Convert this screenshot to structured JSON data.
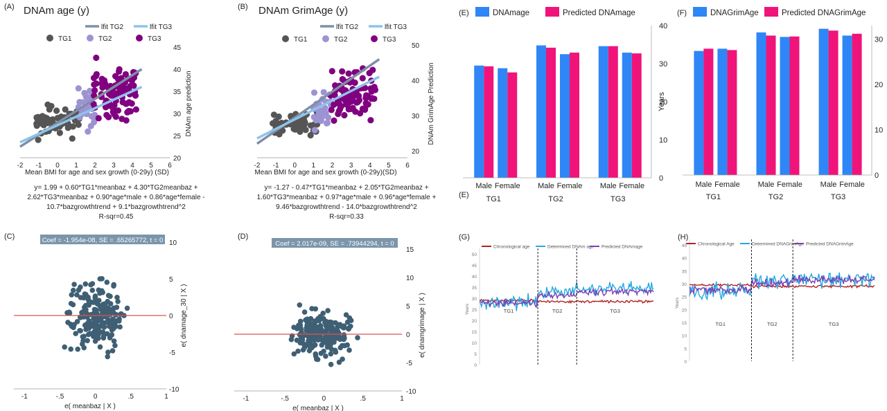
{
  "panels": {
    "A": {
      "letter": "(A)",
      "title": "DNAm age (y)",
      "legend_groups": [
        "TG1",
        "TG2",
        "TG3"
      ],
      "legend_fits": [
        "lfit TG2",
        "lfit TG3"
      ],
      "xlabel": "Mean BMI for age and sex  growth (0-29y) (SD)",
      "ylabel": "DNAm age prediction",
      "x_ticks": [
        "-2",
        "-1",
        "0",
        "1",
        "2",
        "3",
        "4",
        "5",
        "6"
      ],
      "y_ticks": [
        "20",
        "25",
        "30",
        "35",
        "40",
        "45"
      ],
      "equation": [
        "y= 1.99 + 0.60*TG1*meanbaz + 4.30*TG2meanbaz +",
        "2.62*TG3*meanbaz +  0.90*age*male + 0.86*age*female -",
        "10.7*bazgrowthtrend + 9.1*bazgrowthtrend^2",
        "R-sqr=0.45"
      ]
    },
    "B": {
      "letter": "(B)",
      "title": "DNAm GrimAge (y)",
      "legend_groups": [
        "TG1",
        "TG2",
        "TG3"
      ],
      "legend_fits": [
        "lfit TG2",
        "lfit TG3"
      ],
      "xlabel": "Mean BMI for age and sex growth (0-29y)(SD)",
      "ylabel": "DNAm GrimAge Prediction",
      "x_ticks": [
        "-2",
        "-1",
        "0",
        "1",
        "2",
        "3",
        "4",
        "5",
        "6"
      ],
      "y_ticks": [
        "20",
        "30",
        "40",
        "50"
      ],
      "equation": [
        "y= -1.27 - 0.47*TG1*meanbaz + 2.05*TG2meanbaz +",
        "1.60*TG3*meanbaz + 0.97*age*male + 0.96*age*female +",
        "9.46*bazgrowthtrend - 14.0*bazgrowthtrend^2",
        "R-sqr=0.33"
      ]
    },
    "C": {
      "letter": "(C)",
      "coef_label": "Coef = -1.954e-08, SE = .65265772, t = 0",
      "xlabel": "e( meanbaz | X )",
      "ylabel": "e( dnamage_30 | X )",
      "x_ticks": [
        "-1",
        "-.5",
        "0",
        ".5",
        "1"
      ],
      "y_ticks": [
        "10",
        "5",
        "0",
        "-5",
        "-10"
      ]
    },
    "D": {
      "letter": "(D)",
      "coef_label": "Coef = 2.017e-09, SE = .73944294, t = 0",
      "xlabel": "e( meanbaz | X )",
      "ylabel": "e( dnamgrimage | X )",
      "x_ticks": [
        "-1",
        "-.5",
        "0",
        ".5",
        "1"
      ],
      "y_ticks": [
        "15",
        "10",
        "5",
        "0",
        "-5",
        "-10"
      ]
    },
    "E": {
      "letter": "(E)",
      "sub_letter": "(E)",
      "legend": [
        "DNAmage",
        "Predicted DNAmage"
      ],
      "ylabel": "Years",
      "y_ticks": [
        "0",
        "10",
        "20",
        "30",
        "40"
      ],
      "categories": [
        "Male",
        "Female",
        "Male",
        "Female",
        "Male",
        "Female"
      ],
      "groups": [
        "TG1",
        "TG2",
        "TG3"
      ]
    },
    "F": {
      "letter": "(F)",
      "legend": [
        "DNAGrimAge",
        "Predicted DNAGrimAge"
      ],
      "y_ticks": [
        "0",
        "10",
        "20",
        "30"
      ],
      "categories": [
        "Male",
        "Female",
        "Male",
        "Female",
        "Male",
        "Female"
      ],
      "groups": [
        "TG1",
        "TG2",
        "TG3"
      ]
    },
    "G": {
      "letter": "(G)",
      "legend": [
        "Chronological age",
        "Determined DNAm age",
        "Predicted DNAmage"
      ],
      "ylabel": "Years",
      "y_ticks": [
        "0",
        "5",
        "10",
        "15",
        "20",
        "25",
        "30",
        "35",
        "40",
        "45",
        "50"
      ],
      "groups": [
        "TG1",
        "TG2",
        "TG3"
      ]
    },
    "H": {
      "letter": "(H)",
      "legend": [
        "Chronological Age",
        "Determined DNAGrimAge",
        "Predicted DNAGrimAge"
      ],
      "ylabel": "Years",
      "y_ticks": [
        "0",
        "5",
        "10",
        "15",
        "20",
        "25",
        "30",
        "35",
        "40",
        "45"
      ],
      "groups": [
        "TG1",
        "TG2",
        "TG3"
      ]
    }
  },
  "colors": {
    "tg1": "#555555",
    "tg2": "#9d93d3",
    "tg3": "#800080",
    "fit_tg2": "#7f8fa6",
    "fit_tg3": "#8ec3ea",
    "resid_dot": "#3f5f74",
    "zero_line": "#d9534f",
    "coef_box": "#7b95ab",
    "bar_actual": "#2f86f6",
    "bar_pred": "#f0147a",
    "chron": "#b22222",
    "determined": "#25a7df",
    "predicted": "#7a3fb5"
  },
  "chart_data": [
    {
      "type": "scatter",
      "panel": "A",
      "title": "DNAm age (y)",
      "xlabel": "Mean BMI for age and sex  growth (0-29y) (SD)",
      "ylabel": "DNAm age prediction",
      "xlim": [
        -2,
        6
      ],
      "ylim": [
        20,
        45
      ],
      "series": [
        {
          "name": "TG1",
          "n": 55,
          "x_range": [
            -1.2,
            1.2
          ],
          "y_range": [
            23,
            34
          ]
        },
        {
          "name": "TG2",
          "n": 30,
          "x_range": [
            1.1,
            2.0
          ],
          "y_range": [
            24,
            38
          ]
        },
        {
          "name": "TG3",
          "n": 90,
          "x_range": [
            1.9,
            4.2
          ],
          "y_range": [
            24,
            44
          ]
        }
      ],
      "fits": [
        {
          "name": "lfit TG2",
          "x": [
            -2,
            4.5
          ],
          "y": [
            22.5,
            40
          ]
        },
        {
          "name": "lfit TG3",
          "x": [
            -2,
            4.5
          ],
          "y": [
            23.5,
            36
          ]
        }
      ]
    },
    {
      "type": "scatter",
      "panel": "B",
      "title": "DNAm GrimAge (y)",
      "xlabel": "Mean BMI for age and sex growth (0-29y)(SD)",
      "ylabel": "DNAm GrimAge Prediction",
      "xlim": [
        -2,
        6
      ],
      "ylim": [
        18,
        52
      ],
      "series": [
        {
          "name": "TG1",
          "n": 50,
          "x_range": [
            -1.2,
            1.2
          ],
          "y_range": [
            22,
            33
          ]
        },
        {
          "name": "TG2",
          "n": 30,
          "x_range": [
            1.0,
            2.0
          ],
          "y_range": [
            22,
            42
          ]
        },
        {
          "name": "TG3",
          "n": 90,
          "x_range": [
            1.9,
            4.3
          ],
          "y_range": [
            25,
            47
          ]
        }
      ],
      "fits": [
        {
          "name": "lfit TG2",
          "x": [
            -2,
            4.5
          ],
          "y": [
            22,
            46
          ]
        },
        {
          "name": "lfit TG3",
          "x": [
            -2,
            4.5
          ],
          "y": [
            23.5,
            41
          ]
        }
      ]
    },
    {
      "type": "scatter",
      "panel": "C",
      "xlabel": "e( meanbaz | X )",
      "ylabel": "e( dnamage_30 | X )",
      "xlim": [
        -1.15,
        1
      ],
      "ylim": [
        -10,
        10
      ],
      "n": 190,
      "fit": {
        "slope": 0,
        "intercept": 0
      }
    },
    {
      "type": "scatter",
      "panel": "D",
      "xlabel": "e( meanbaz | X )",
      "ylabel": "e( dnamgrimage | X )",
      "xlim": [
        -1.15,
        1
      ],
      "ylim": [
        -10,
        15
      ],
      "n": 190,
      "fit": {
        "slope": 0,
        "intercept": 0
      }
    },
    {
      "type": "bar",
      "panel": "E",
      "ylabel": "Years",
      "ylim": [
        0,
        40
      ],
      "categories": [
        "TG1 Male",
        "TG1 Female",
        "TG2 Male",
        "TG2 Female",
        "TG3 Male",
        "TG3 Female"
      ],
      "series": [
        {
          "name": "DNAmage",
          "values": [
            29.5,
            28.8,
            34.8,
            32.5,
            34.6,
            32.9
          ]
        },
        {
          "name": "Predicted DNAmage",
          "values": [
            29.3,
            27.7,
            34.2,
            32.9,
            34.6,
            32.7
          ]
        }
      ]
    },
    {
      "type": "bar",
      "panel": "F",
      "ylim": [
        0,
        33
      ],
      "categories": [
        "TG1 Male",
        "TG1 Female",
        "TG2 Male",
        "TG2 Female",
        "TG3 Male",
        "TG3 Female"
      ],
      "series": [
        {
          "name": "DNAGrimAge",
          "values": [
            27.4,
            27.9,
            31.5,
            30.5,
            32.3,
            30.8
          ]
        },
        {
          "name": "Predicted DNAGrimAge",
          "values": [
            27.9,
            27.6,
            30.8,
            30.6,
            31.9,
            31.2
          ]
        }
      ]
    },
    {
      "type": "line",
      "panel": "G",
      "ylabel": "Years",
      "ylim": [
        0,
        50
      ],
      "n_points": 180,
      "group_boundaries": [
        60,
        100
      ],
      "series": [
        {
          "name": "Chronological age",
          "level_by_group": [
            29,
            28.5,
            28.5
          ],
          "noise": 0.8
        },
        {
          "name": "Determined DNAm age",
          "level_by_group": [
            28,
            33,
            34
          ],
          "noise": 4.5
        },
        {
          "name": "Predicted DNAmage",
          "level_by_group": [
            28,
            31.5,
            33
          ],
          "noise": 2.2
        }
      ]
    },
    {
      "type": "line",
      "panel": "H",
      "ylabel": "Years",
      "ylim": [
        0,
        45
      ],
      "n_points": 180,
      "group_boundaries": [
        60,
        100
      ],
      "series": [
        {
          "name": "Chronological Age",
          "level_by_group": [
            29.5,
            29,
            29
          ],
          "noise": 0.8
        },
        {
          "name": "Determined DNAGrimAge",
          "level_by_group": [
            27,
            31,
            32
          ],
          "noise": 4.5
        },
        {
          "name": "Predicted DNAGrimAge",
          "level_by_group": [
            27.5,
            30.5,
            31.5
          ],
          "noise": 2.2
        }
      ]
    }
  ]
}
